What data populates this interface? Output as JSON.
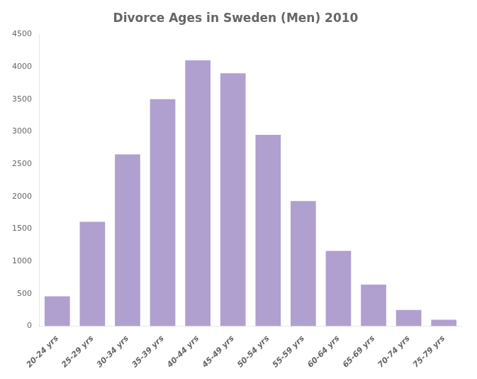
{
  "chart_data": {
    "type": "bar",
    "title": "Divorce Ages in Sweden (Men) 2010",
    "categories": [
      "20-24 yrs",
      "25-29 yrs",
      "30-34 yrs",
      "35-39 yrs",
      "40-44 yrs",
      "45-49 yrs",
      "50-54 yrs",
      "55-59 yrs",
      "60-64 yrs",
      "65-69 yrs",
      "70-74 yrs",
      "75-79 yrs"
    ],
    "values": [
      460,
      1610,
      2650,
      3500,
      4100,
      3900,
      2950,
      1930,
      1160,
      640,
      250,
      100
    ],
    "color": "#b0a0d0",
    "ylim": [
      0,
      4500
    ],
    "yticks": [
      0,
      500,
      1000,
      1500,
      2000,
      2500,
      3000,
      3500,
      4000,
      4500
    ],
    "grid": false
  }
}
